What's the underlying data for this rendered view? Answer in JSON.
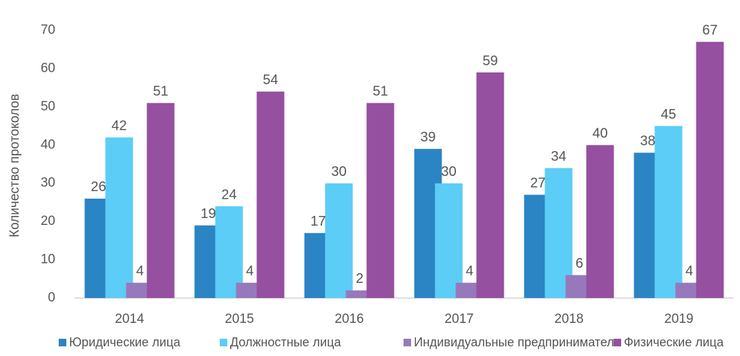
{
  "chart_data": {
    "type": "bar",
    "y_axis_label": "Количество протоколов",
    "categories": [
      "2014",
      "2015",
      "2016",
      "2017",
      "2018",
      "2019"
    ],
    "series": [
      {
        "name": "Юридические лица",
        "color": "#2b84c3",
        "values": [
          26,
          19,
          17,
          39,
          27,
          38
        ]
      },
      {
        "name": "Должностные лица",
        "color": "#5ccdf6",
        "values": [
          42,
          24,
          30,
          30,
          34,
          45
        ]
      },
      {
        "name": "Индивидуальные предприниматели",
        "color": "#9779bb",
        "values": [
          4,
          4,
          2,
          4,
          6,
          4
        ]
      },
      {
        "name": "Физические лица",
        "color": "#95509f",
        "values": [
          51,
          54,
          51,
          59,
          40,
          67
        ]
      }
    ],
    "ylim": [
      0,
      70
    ],
    "yticks": [
      0,
      10,
      20,
      30,
      40,
      50,
      60,
      70
    ],
    "grid": false,
    "legend": "bottom"
  }
}
